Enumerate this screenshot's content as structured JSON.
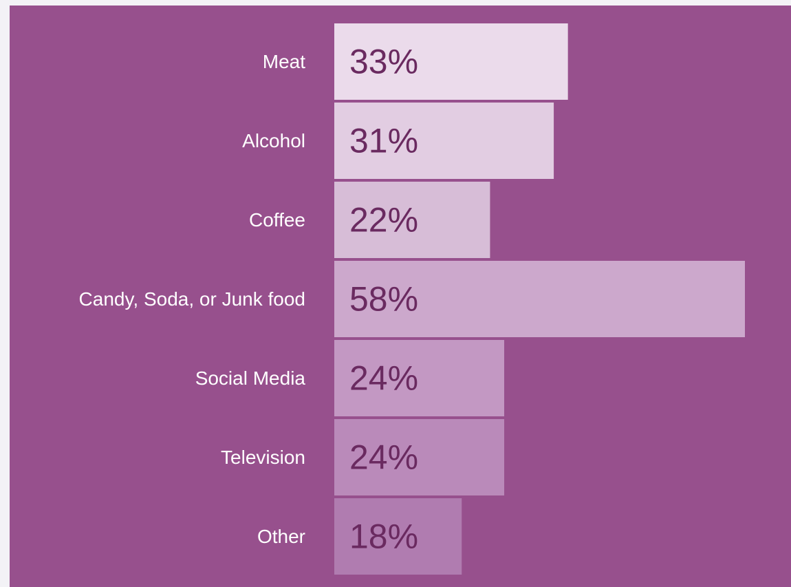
{
  "chart_data": {
    "type": "bar",
    "orientation": "horizontal",
    "categories": [
      "Meat",
      "Alcohol",
      "Coffee",
      "Candy, Soda, or Junk food",
      "Social Media",
      "Television",
      "Other"
    ],
    "values": [
      33,
      31,
      22,
      58,
      24,
      24,
      18
    ],
    "value_labels": [
      "33%",
      "31%",
      "22%",
      "58%",
      "24%",
      "24%",
      "18%"
    ],
    "unit": "%",
    "xlim": [
      0,
      58
    ],
    "grid": false,
    "legend": "none"
  },
  "colors": {
    "page_background": "#f3f2f6",
    "panel_background": "#97508d",
    "category_text": "#ffffff",
    "value_text": "#6a2a60",
    "bar_fills": [
      "#ebdbeb",
      "#e2cde2",
      "#d7bdd7",
      "#cca8cc",
      "#c398c3",
      "#ba8aba",
      "#b07cb0"
    ]
  }
}
